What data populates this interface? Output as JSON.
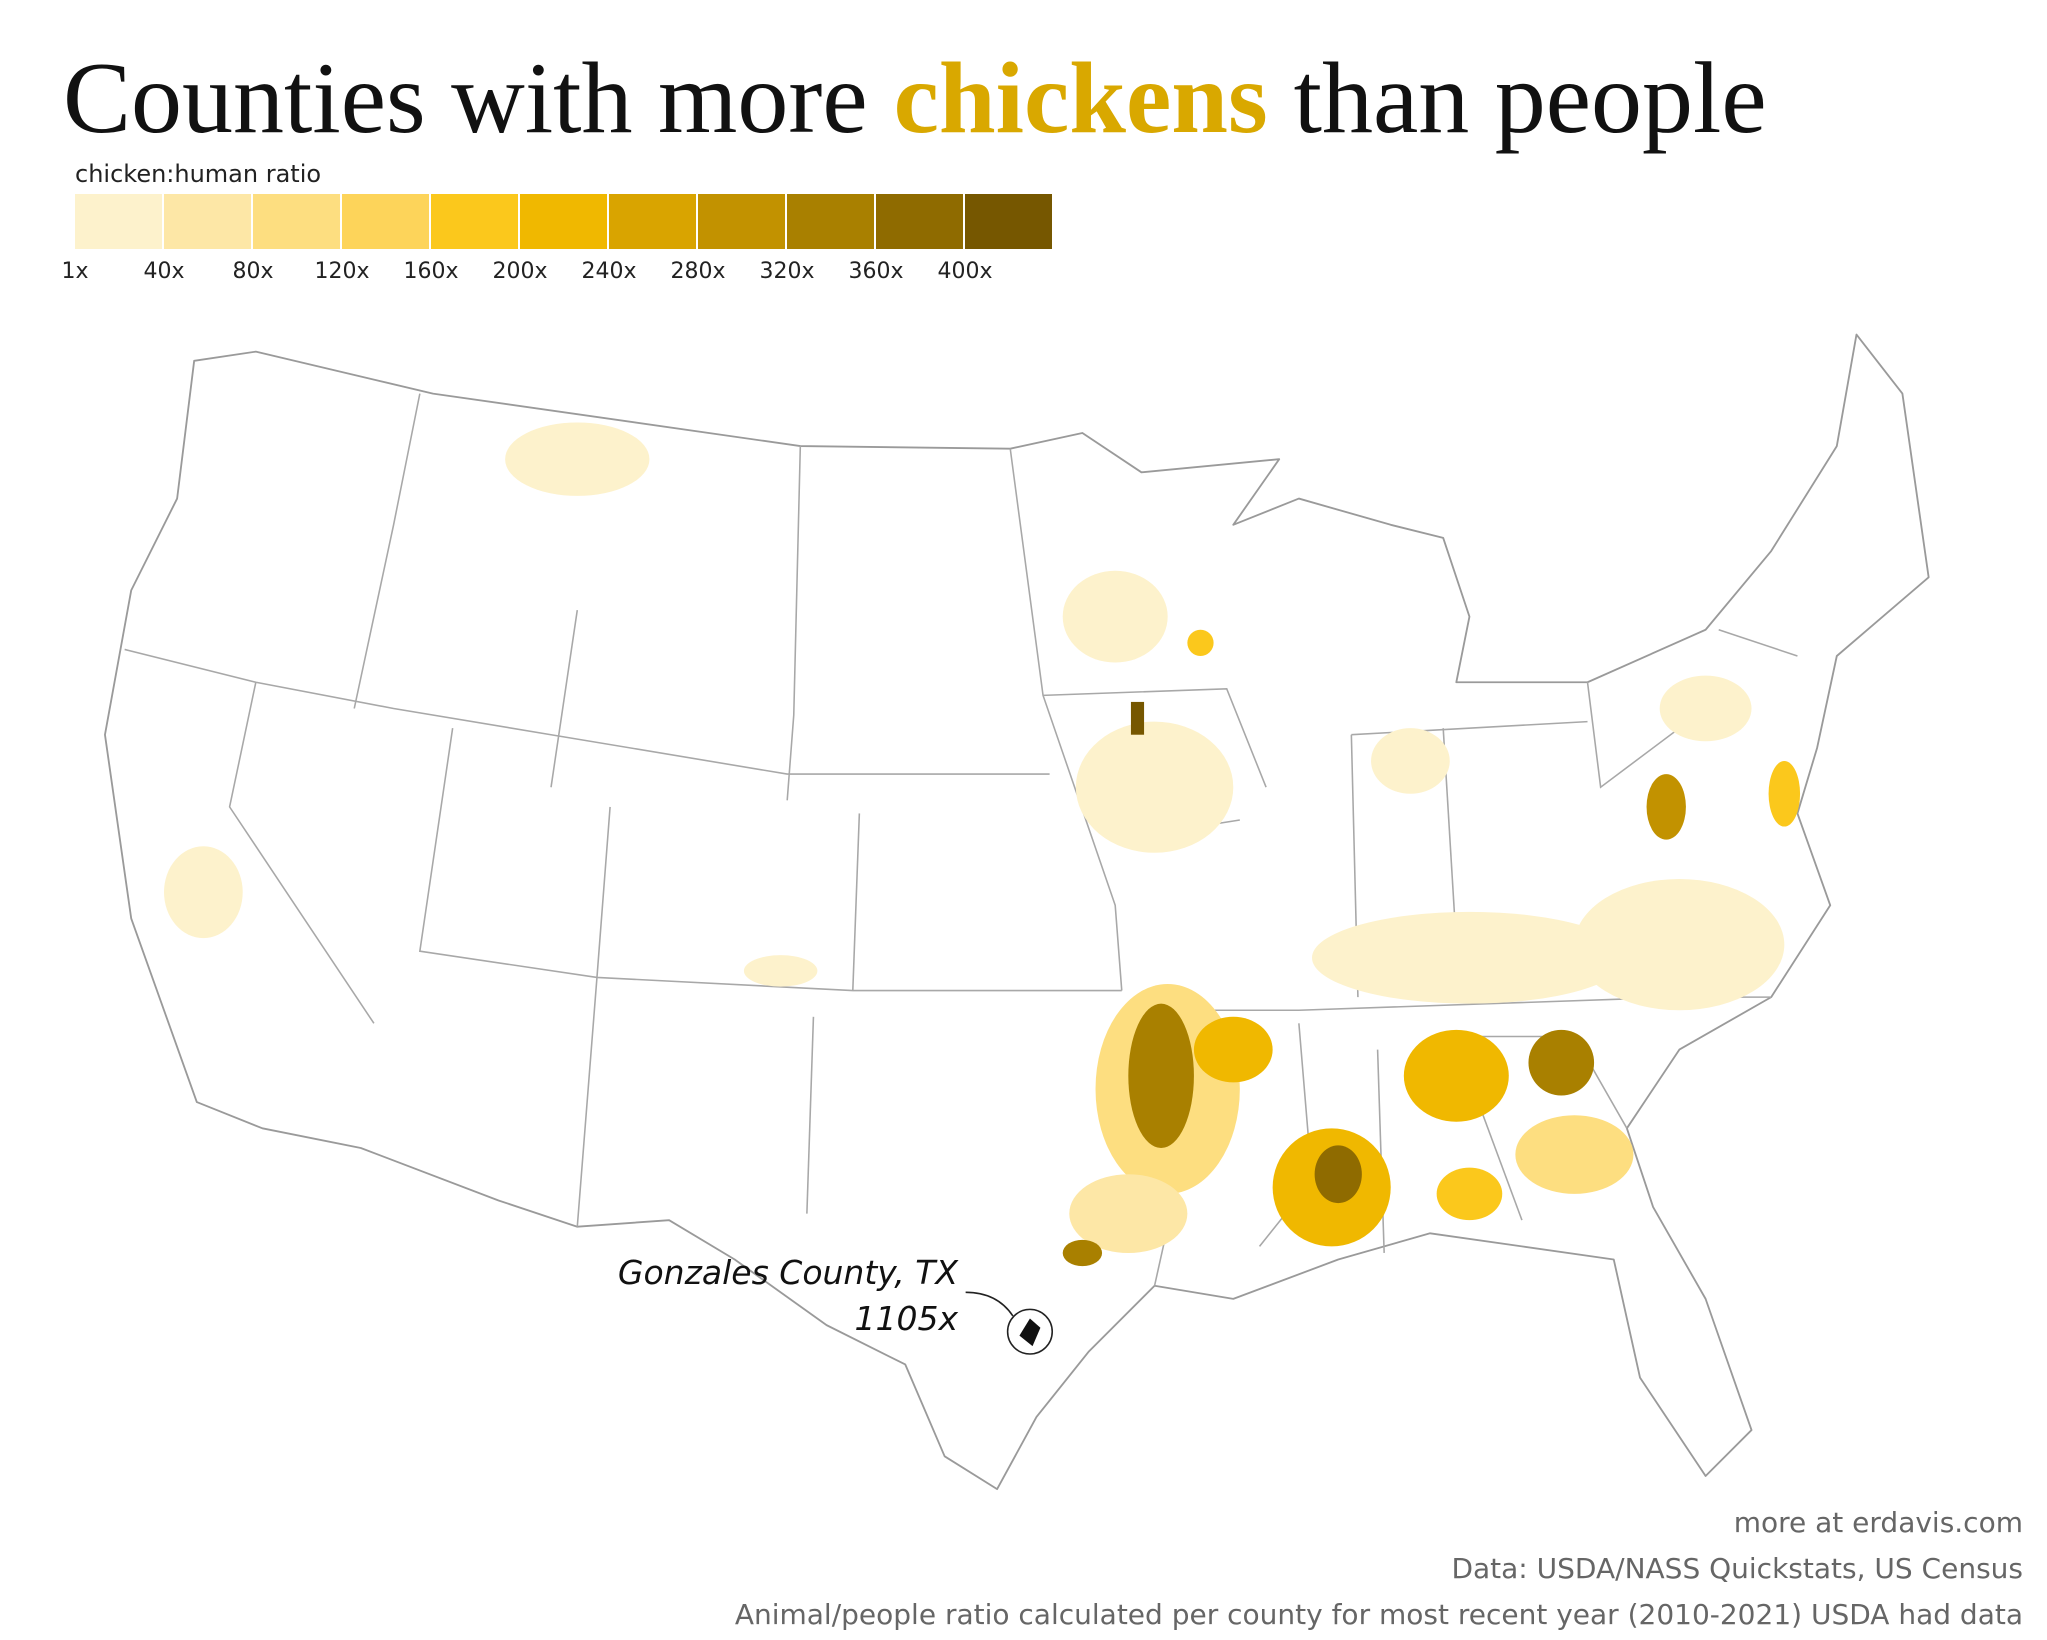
{
  "title": {
    "part1": "Counties with more",
    "highlight": "chickens",
    "part2": "than people"
  },
  "legend": {
    "title": "chicken:human ratio",
    "colors": [
      "#fdf2cc",
      "#fde7a6",
      "#fdde80",
      "#fdd45a",
      "#fbc81c",
      "#f0b800",
      "#d9a400",
      "#c29200",
      "#a98000",
      "#8f6b00",
      "#765700"
    ],
    "labels": [
      "1x",
      "40x",
      "80x",
      "120x",
      "160x",
      "200x",
      "240x",
      "280x",
      "320x",
      "360x",
      "400x"
    ]
  },
  "annotation": {
    "label": "Gonzales County, TX",
    "value": "1105x"
  },
  "footer": [
    "more at erdavis.com",
    "Data: USDA/NASS Quickstats, US Census",
    "Animal/people ratio calculated per county for most recent year (2010-2021) USDA had data"
  ]
}
